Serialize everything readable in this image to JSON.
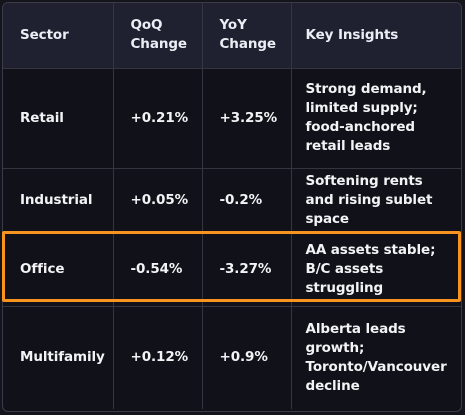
{
  "table": {
    "headers": [
      "Sector",
      "QoQ Change",
      "YoY Change",
      "Key Insights"
    ],
    "rows": [
      {
        "sector": "Retail",
        "qoq": "+0.21%",
        "yoy": "+3.25%",
        "insights": "Strong demand, limited supply; food-anchored retail leads"
      },
      {
        "sector": "Industrial",
        "qoq": "+0.05%",
        "yoy": "-0.2%",
        "insights": "Softening rents and rising sublet space"
      },
      {
        "sector": "Office",
        "qoq": "-0.54%",
        "yoy": "-3.27%",
        "insights": "AA assets stable; B/C assets struggling"
      },
      {
        "sector": "Multifamily",
        "qoq": "+0.12%",
        "yoy": "+0.9%",
        "insights": "Alberta leads growth; Toronto/Vancouver decline"
      }
    ]
  },
  "highlight": {
    "row": "Office",
    "color": "#f7931e"
  },
  "colors": {
    "header_bg": "#1f2130",
    "body_bg": "#111219",
    "border": "#34353f",
    "text": "#f3f3f6"
  }
}
